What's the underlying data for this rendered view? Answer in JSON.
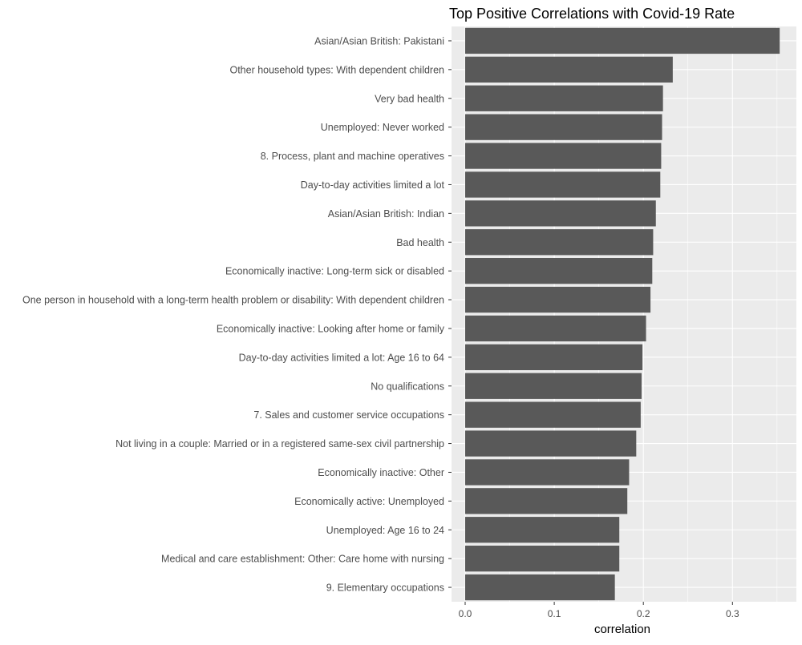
{
  "chart_data": {
    "type": "bar",
    "orientation": "horizontal",
    "title": "Top Positive Correlations with Covid-19 Rate",
    "xlabel": "correlation",
    "ylabel": "",
    "xlim": [
      0,
      0.35
    ],
    "x_ticks": [
      "0.0",
      "0.1",
      "0.2",
      "0.3"
    ],
    "grid": true,
    "background_color": "#ebebeb",
    "grid_color": "#ffffff",
    "bar_color": "#595959",
    "categories": [
      "Asian/Asian British: Pakistani",
      "Other household types: With dependent children",
      "Very bad health",
      "Unemployed: Never worked",
      "8. Process, plant and machine operatives",
      "Day-to-day activities limited a lot",
      "Asian/Asian British: Indian",
      "Bad health",
      "Economically inactive: Long-term sick or disabled",
      "One person in household with a long-term health problem or disability: With dependent children",
      "Economically inactive: Looking after home or family",
      "Day-to-day activities limited a lot: Age 16 to 64",
      "No qualifications",
      "7. Sales and customer service occupations",
      "Not living in a couple: Married or in a registered same-sex civil partnership",
      "Economically inactive: Other",
      "Economically active: Unemployed",
      "Unemployed: Age 16 to 24",
      "Medical and care establishment: Other: Care home with nursing",
      "9. Elementary occupations"
    ],
    "values": [
      0.353,
      0.233,
      0.222,
      0.221,
      0.22,
      0.219,
      0.214,
      0.211,
      0.21,
      0.208,
      0.203,
      0.199,
      0.198,
      0.197,
      0.192,
      0.184,
      0.182,
      0.173,
      0.173,
      0.168
    ]
  }
}
